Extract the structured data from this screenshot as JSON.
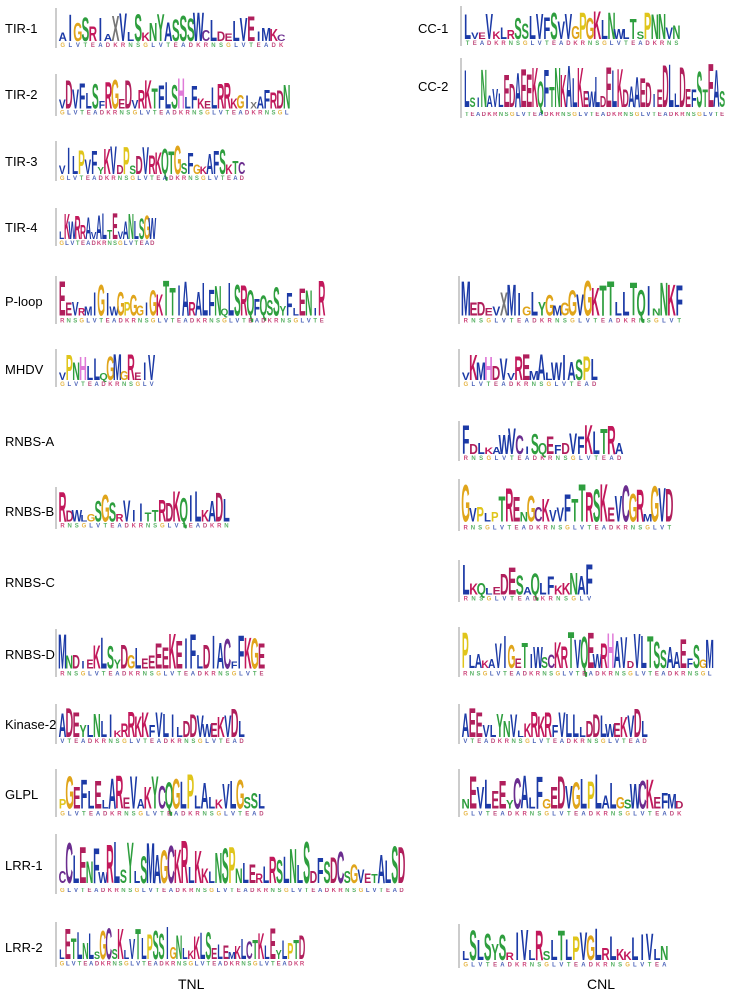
{
  "columns": {
    "left": "TNL",
    "right": "CNL"
  },
  "motifs": [
    {
      "id": "tir1",
      "label": "TIR-1",
      "left_seq": "AIGSRIAXVLSKNYASSSWCLDELVEIMKC",
      "right_seq": ""
    },
    {
      "id": "tir2",
      "label": "TIR-2",
      "left_seq": "VDVFLSFRGEDVRKTFLSHLFKELRRKGIXAFRDN",
      "right_seq": ""
    },
    {
      "id": "tir3",
      "label": "TIR-3",
      "left_seq": "VILPVFYKVDPSDVRKQTGSFGKAFSKTC",
      "right_seq": ""
    },
    {
      "id": "tir4",
      "label": "TIR-4",
      "left_seq": "LKWRRAVALTEVANLSGW",
      "right_seq": ""
    },
    {
      "id": "cc1",
      "label": "CC-1",
      "left_seq": "",
      "right_seq": "LVEVKLRSSLVFSVVGPGKLNWLTSPNNVN"
    },
    {
      "id": "cc2",
      "label": "CC-2",
      "left_seq": "",
      "right_seq": "LSINAVLEDAEEKQFTNKALKEWLDELKDAAEDIEDLLDEFSTEAS"
    },
    {
      "id": "ploop",
      "label": "P-loop",
      "left_seq": "EEVRMIGIWGPGGIGKTTIARALFNQLSRQFQSSYFLENIR",
      "right_seq": "MEDEVXMIGLYGMGGVGKTTLLTQINNKF"
    },
    {
      "id": "mhdv",
      "label": "MHDV",
      "left_seq": "VPNHLLQGMGREIV",
      "right_seq": "VKMHDVVREMALWIASPL"
    },
    {
      "id": "rnbsa",
      "label": "RNBS-A",
      "left_seq": "",
      "right_seq": "FDLKAWVCISQEFDVFKLTRA"
    },
    {
      "id": "rnbsb",
      "label": "RNBS-B",
      "left_seq": "RDWLGSGSRVIITTRDKQILKADL",
      "right_seq": "GVPLPTRENGCKVVFTTRSKEVCGRMGVD"
    },
    {
      "id": "rnbsc",
      "label": "RNBS-C",
      "left_seq": "",
      "right_seq": "LKQLEDESAQLFKKNAF"
    },
    {
      "id": "rnbsd",
      "label": "RNBS-D",
      "left_seq": "MNDIEKLSYDGLEEEEKEIFLDIACFFKGE",
      "right_seq": "PLAKAVIGETIWSCKRTVQEWRHAVDVLTSSAAEFSGM"
    },
    {
      "id": "kinase2",
      "label": "Kinase-2",
      "left_seq": "ADEYLNLIKRRKKFVLILDDVWEKVDL",
      "right_seq": "AEEVLYNVLKRKRFVLLLDDLWEKVDL"
    },
    {
      "id": "glpl",
      "label": "GLPL",
      "left_seq": "PGEFLELAREVAKYCQGLPLALKVLGSSL",
      "right_seq": "NEVLEEYCALFGEDVGLPLALGSWCKEFMD"
    },
    {
      "id": "lrr1",
      "label": "LRR-1",
      "left_seq": "CCLENFWRLSYLSMAGCKRLKKLNSPNLERLRSLNLSDFSDCSGVETALSD",
      "right_seq": ""
    },
    {
      "id": "lrr2",
      "label": "LRR-2",
      "left_seq": "LETLNLSGCSKLVTLPSSIGNLKKLSELEMKLCTKLEYLPTD",
      "right_seq": "LSLSYSRIVLRSLTLPVGLRLKKLIVLN"
    }
  ],
  "colors": {
    "A": "#1c3aa6",
    "C": "#6b2d8f",
    "D": "#b01f5c",
    "E": "#b01f5c",
    "F": "#1c3aa6",
    "G": "#e0a51b",
    "H": "#e07bd8",
    "I": "#1c3aa6",
    "K": "#c2185b",
    "L": "#1c3aa6",
    "M": "#1c3aa6",
    "N": "#2e9e3e",
    "P": "#e0c51b",
    "Q": "#2e9e3e",
    "R": "#c2185b",
    "S": "#2e9e3e",
    "T": "#2e9e3e",
    "V": "#1c3aa6",
    "W": "#1c3aa6",
    "X": "#777777",
    "Y": "#2e9e3e"
  }
}
